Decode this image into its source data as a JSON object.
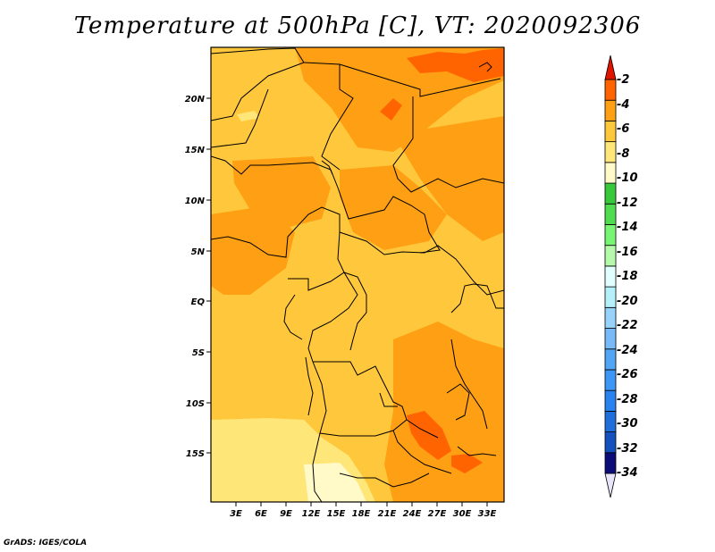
{
  "title": "Temperature at 500hPa [C], VT: 2020092306",
  "credit": "GrADS: IGES/COLA",
  "map": {
    "lat_labels": [
      "20N",
      "15N",
      "10N",
      "5N",
      "EQ",
      "5S",
      "10S",
      "15S"
    ],
    "lon_labels": [
      "3E",
      "6E",
      "9E",
      "12E",
      "15E",
      "18E",
      "21E",
      "24E",
      "27E",
      "30E",
      "33E"
    ]
  },
  "colorbar": {
    "labels": [
      "-2",
      "-4",
      "-6",
      "-8",
      "-10",
      "-12",
      "-14",
      "-16",
      "-18",
      "-20",
      "-22",
      "-24",
      "-26",
      "-28",
      "-30",
      "-32",
      "-34"
    ],
    "colors": [
      "#e8e4fa",
      "#0c0c78",
      "#1450be",
      "#1e6edc",
      "#2882f0",
      "#3c96f5",
      "#50a5f5",
      "#78b9fa",
      "#96d2fa",
      "#b4f0fa",
      "#e1ffff",
      "#b4faaa",
      "#78f573",
      "#50dc50",
      "#37c83c",
      "#fffac8",
      "#ffe678",
      "#ffc83c",
      "#ffa014",
      "#ff6400",
      "#e11400"
    ]
  },
  "chart_data": {
    "type": "heatmap",
    "title": "Temperature at 500hPa [C], VT: 2020092306",
    "field": "Temperature at 500hPa",
    "units": "C",
    "valid_time": "2020092306",
    "lon_range": [
      0,
      34
    ],
    "lat_range": [
      -20,
      24
    ],
    "contour_levels": [
      -34,
      -32,
      -30,
      -28,
      -26,
      -24,
      -22,
      -20,
      -18,
      -16,
      -14,
      -12,
      -10,
      -8,
      -6,
      -4,
      -2
    ],
    "dominant_range": [
      -10,
      -2
    ]
  }
}
